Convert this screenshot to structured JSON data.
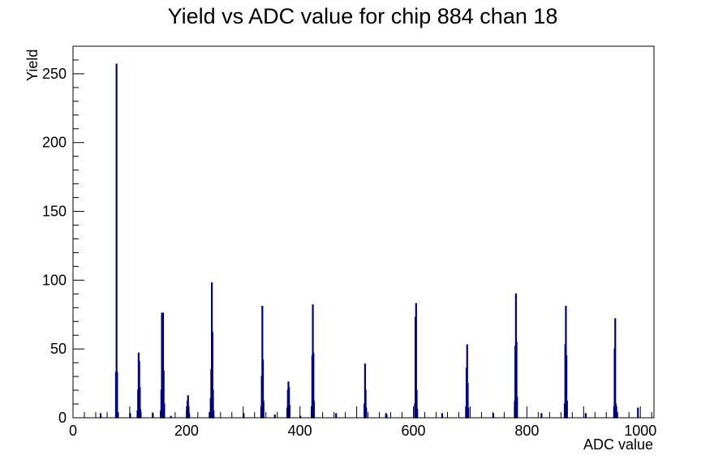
{
  "chart_data": {
    "type": "histogram",
    "title": "Yield vs ADC value for chip 884 chan 18",
    "xlabel": "ADC value",
    "ylabel": "Yield",
    "xlim": [
      0,
      1024
    ],
    "ylim": [
      0,
      270
    ],
    "x_ticks": [
      0,
      200,
      400,
      600,
      800,
      1000
    ],
    "y_ticks": [
      0,
      50,
      100,
      150,
      200,
      250
    ],
    "grid": false,
    "line_color": "#000080",
    "bin_width": 1,
    "peaks": [
      {
        "x": 75,
        "y": 33
      },
      {
        "x": 76,
        "y": 257
      },
      {
        "x": 77,
        "y": 33
      },
      {
        "x": 113,
        "y": 5
      },
      {
        "x": 114,
        "y": 20
      },
      {
        "x": 115,
        "y": 47
      },
      {
        "x": 116,
        "y": 41
      },
      {
        "x": 117,
        "y": 22
      },
      {
        "x": 118,
        "y": 6
      },
      {
        "x": 154,
        "y": 5
      },
      {
        "x": 155,
        "y": 20
      },
      {
        "x": 156,
        "y": 76
      },
      {
        "x": 157,
        "y": 76
      },
      {
        "x": 158,
        "y": 76
      },
      {
        "x": 159,
        "y": 34
      },
      {
        "x": 160,
        "y": 10
      },
      {
        "x": 200,
        "y": 5
      },
      {
        "x": 201,
        "y": 12
      },
      {
        "x": 202,
        "y": 16
      },
      {
        "x": 203,
        "y": 8
      },
      {
        "x": 204,
        "y": 3
      },
      {
        "x": 241,
        "y": 4
      },
      {
        "x": 242,
        "y": 14
      },
      {
        "x": 243,
        "y": 35
      },
      {
        "x": 244,
        "y": 98
      },
      {
        "x": 245,
        "y": 62
      },
      {
        "x": 246,
        "y": 20
      },
      {
        "x": 247,
        "y": 5
      },
      {
        "x": 331,
        "y": 8
      },
      {
        "x": 332,
        "y": 30
      },
      {
        "x": 333,
        "y": 81
      },
      {
        "x": 334,
        "y": 42
      },
      {
        "x": 335,
        "y": 12
      },
      {
        "x": 377,
        "y": 7
      },
      {
        "x": 378,
        "y": 20
      },
      {
        "x": 379,
        "y": 26
      },
      {
        "x": 380,
        "y": 22
      },
      {
        "x": 381,
        "y": 9
      },
      {
        "x": 420,
        "y": 8
      },
      {
        "x": 421,
        "y": 45
      },
      {
        "x": 422,
        "y": 82
      },
      {
        "x": 423,
        "y": 47
      },
      {
        "x": 424,
        "y": 12
      },
      {
        "x": 513,
        "y": 10
      },
      {
        "x": 514,
        "y": 39
      },
      {
        "x": 515,
        "y": 20
      },
      {
        "x": 516,
        "y": 7
      },
      {
        "x": 602,
        "y": 10
      },
      {
        "x": 603,
        "y": 73
      },
      {
        "x": 604,
        "y": 83
      },
      {
        "x": 605,
        "y": 20
      },
      {
        "x": 606,
        "y": 6
      },
      {
        "x": 692,
        "y": 8
      },
      {
        "x": 693,
        "y": 36
      },
      {
        "x": 694,
        "y": 53
      },
      {
        "x": 695,
        "y": 25
      },
      {
        "x": 696,
        "y": 7
      },
      {
        "x": 778,
        "y": 12
      },
      {
        "x": 779,
        "y": 52
      },
      {
        "x": 780,
        "y": 90
      },
      {
        "x": 781,
        "y": 55
      },
      {
        "x": 782,
        "y": 15
      },
      {
        "x": 866,
        "y": 10
      },
      {
        "x": 867,
        "y": 53
      },
      {
        "x": 868,
        "y": 81
      },
      {
        "x": 869,
        "y": 45
      },
      {
        "x": 870,
        "y": 12
      },
      {
        "x": 953,
        "y": 8
      },
      {
        "x": 954,
        "y": 50
      },
      {
        "x": 955,
        "y": 72
      },
      {
        "x": 956,
        "y": 10
      },
      {
        "x": 957,
        "y": 8
      },
      {
        "x": 958,
        "y": 3
      }
    ],
    "isolated_counts": [
      {
        "x": 48,
        "y": 3
      },
      {
        "x": 100,
        "y": 3
      },
      {
        "x": 140,
        "y": 3
      },
      {
        "x": 172,
        "y": 1
      },
      {
        "x": 300,
        "y": 3
      },
      {
        "x": 355,
        "y": 2
      },
      {
        "x": 400,
        "y": 1
      },
      {
        "x": 463,
        "y": 3
      },
      {
        "x": 551,
        "y": 3
      },
      {
        "x": 552,
        "y": 2
      },
      {
        "x": 650,
        "y": 3
      },
      {
        "x": 740,
        "y": 3
      },
      {
        "x": 825,
        "y": 3
      },
      {
        "x": 903,
        "y": 3
      },
      {
        "x": 995,
        "y": 7
      }
    ]
  }
}
